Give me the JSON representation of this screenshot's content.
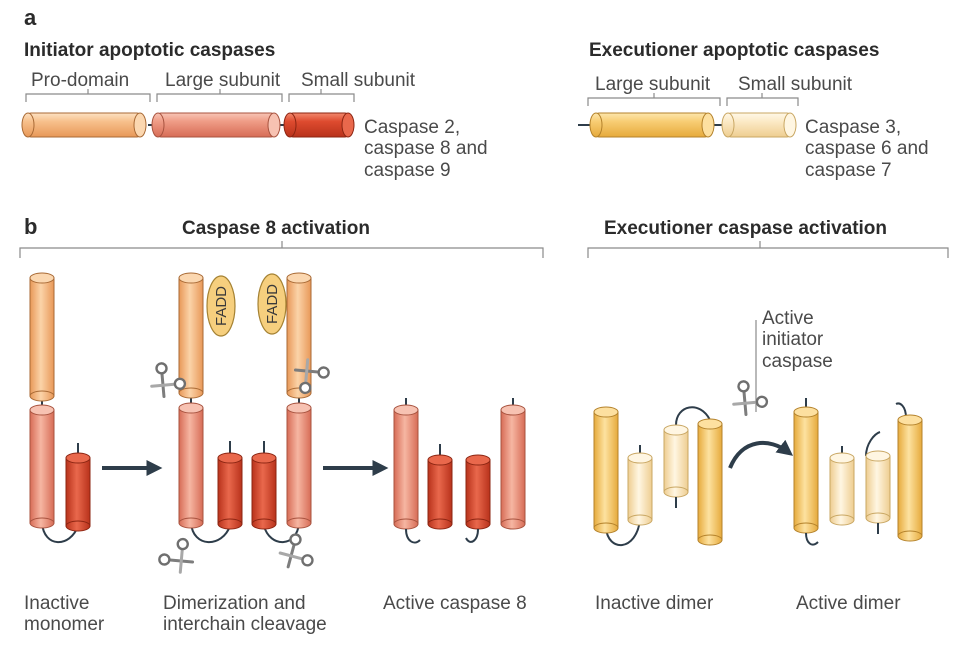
{
  "panel_a": {
    "letter": "a",
    "initiator": {
      "title": "Initiator apoptotic caspases",
      "pro_domain": "Pro-domain",
      "large_subunit": "Large subunit",
      "small_subunit": "Small subunit",
      "members": "Caspase 2,\ncaspase 8 and\ncaspase 9"
    },
    "executioner": {
      "title": "Executioner apoptotic caspases",
      "large_subunit": "Large subunit",
      "small_subunit": "Small subunit",
      "members": "Caspase 3,\ncaspase 6 and\ncaspase 7"
    }
  },
  "panel_b": {
    "letter": "b",
    "caspase8_title": "Caspase 8 activation",
    "executioner_title": "Executioner caspase activation",
    "fadd": "FADD",
    "active_initiator": "Active\ninitiator\ncaspase",
    "captions": {
      "inactive_monomer": "Inactive\nmonomer",
      "dimerization": "Dimerization and\ninterchain cleavage",
      "active_caspase8": "Active caspase 8",
      "inactive_dimer": "Inactive dimer",
      "active_dimer": "Active dimer"
    }
  },
  "colors": {
    "prodomain": "#f5b27a",
    "large_initiator": "#ec8f7c",
    "small_initiator": "#d9472d",
    "large_exec": "#f6c66a",
    "small_exec": "#fbe3b6",
    "fadd_fill": "#f6cf7e",
    "arrow": "#2e3d4a",
    "bracket": "#8a8a8a"
  }
}
